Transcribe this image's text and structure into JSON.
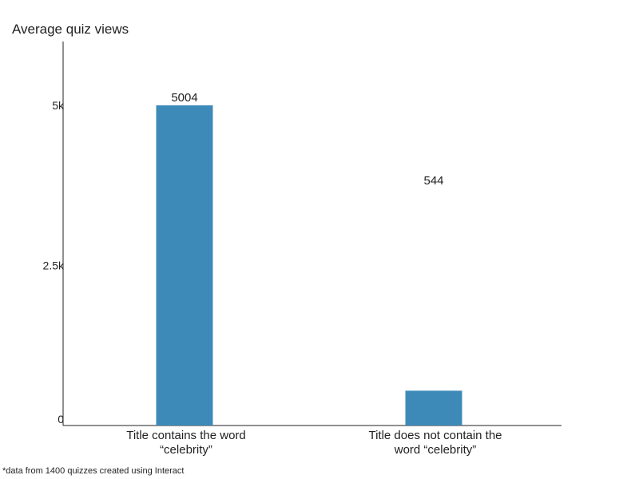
{
  "chart_data": {
    "type": "bar",
    "title": "Average quiz views",
    "xlabel": "",
    "ylabel": "",
    "categories": [
      [
        "Title contains the word",
        "“celebrity”"
      ],
      [
        "Title does not contain the",
        "word “celebrity”"
      ]
    ],
    "values": [
      5004,
      544
    ],
    "data_labels": [
      "5004",
      "544"
    ],
    "ylim": [
      0,
      6000
    ],
    "y_ticks": [
      {
        "value": 0,
        "label": "0"
      },
      {
        "value": 2500,
        "label": "2.5k"
      },
      {
        "value": 5000,
        "label": "5k"
      }
    ],
    "bar_color": "#3d8ab9",
    "grid": false,
    "legend": "none"
  },
  "footnote": "*data from 1400 quizzes created using Interact"
}
